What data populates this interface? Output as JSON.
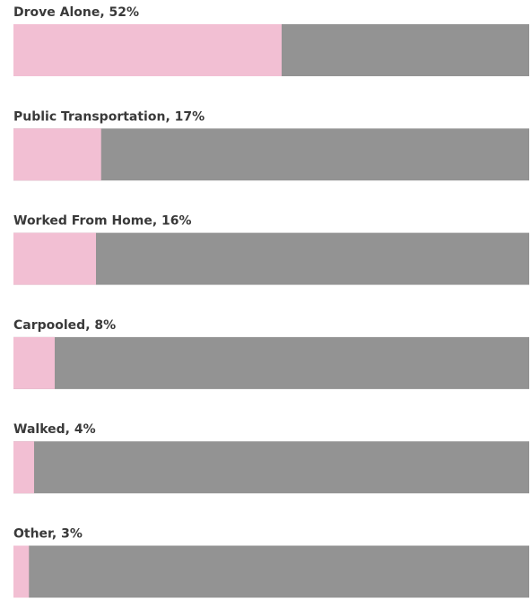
{
  "chart_data": {
    "type": "progress-bar",
    "value_labels": [
      "Drove Alone, 52%",
      "Public Transportation, 17%",
      "Worked From Home, 16%",
      "Carpooled, 8%",
      "Walked, 4%",
      "Other, 3%"
    ],
    "values": [
      52,
      17,
      16,
      8,
      4,
      3
    ],
    "xlim": [
      0,
      100
    ],
    "color": "#f2bfd3",
    "track_color": "#939393"
  }
}
